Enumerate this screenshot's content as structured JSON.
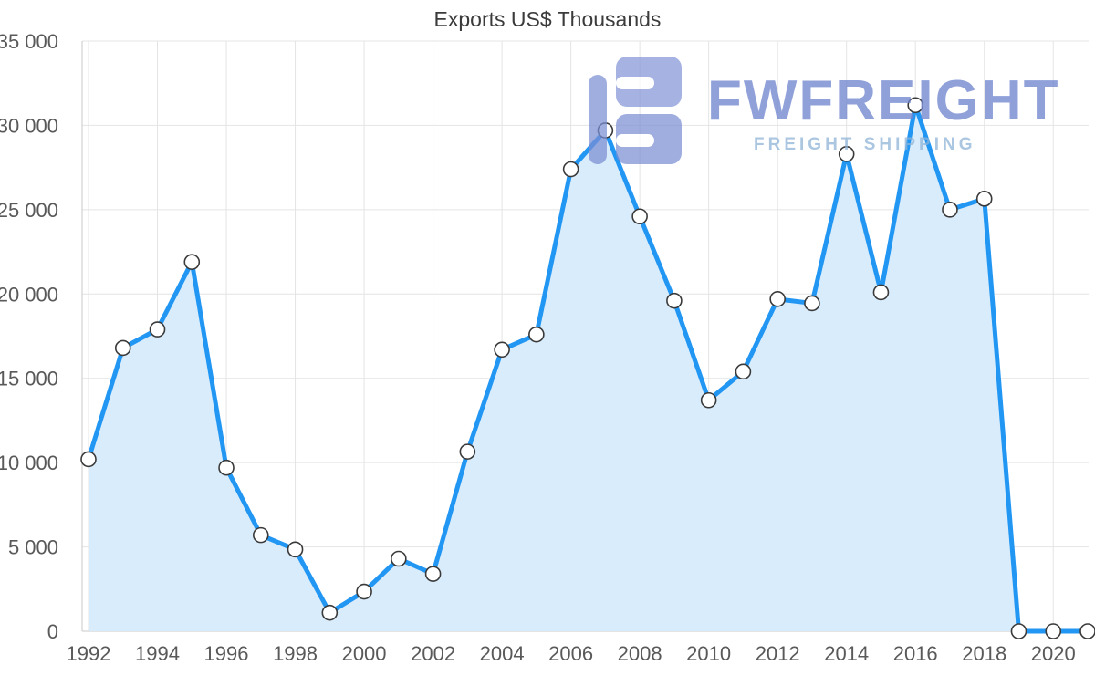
{
  "chart_data": {
    "type": "area",
    "title": "Exports US$ Thousands",
    "x": [
      1992,
      1993,
      1994,
      1995,
      1996,
      1997,
      1998,
      1999,
      2000,
      2001,
      2002,
      2003,
      2004,
      2005,
      2006,
      2007,
      2008,
      2009,
      2010,
      2011,
      2012,
      2013,
      2014,
      2015,
      2016,
      2017,
      2018,
      2019,
      2020,
      2021
    ],
    "values": [
      10200,
      16800,
      17900,
      21900,
      9700,
      5700,
      4850,
      1100,
      2350,
      4300,
      3400,
      10650,
      16700,
      17600,
      27400,
      29700,
      24600,
      19600,
      13700,
      15400,
      19700,
      19450,
      28300,
      20100,
      31200,
      25000,
      25650,
      0,
      0,
      0
    ],
    "ylim": [
      0,
      35000
    ],
    "y_tick_values": [
      0,
      5000,
      10000,
      15000,
      20000,
      25000,
      30000,
      35000
    ],
    "y_tick_labels": [
      "0",
      "5 000",
      "10 000",
      "15 000",
      "20 000",
      "25 000",
      "30 000",
      "35 000"
    ],
    "x_tick_labels": [
      "1992",
      "1994",
      "1996",
      "1998",
      "2000",
      "2002",
      "2004",
      "2006",
      "2008",
      "2010",
      "2012",
      "2014",
      "2016",
      "2018",
      "2020"
    ],
    "grid": true,
    "legend": "none",
    "colors": {
      "line": "#2196f3",
      "area_fill": "#d9ecfb",
      "marker_fill": "#ffffff",
      "marker_stroke": "#3a3a3a",
      "grid": "#e4e4e4",
      "axis": "#c9c9c9",
      "tick_label": "#595959",
      "title": "#3b3b3b"
    }
  },
  "watermark": {
    "brand": "FWFREIGHT",
    "tagline": "FREIGHT SHIPPING",
    "logo_color": "#7b8fd4"
  }
}
